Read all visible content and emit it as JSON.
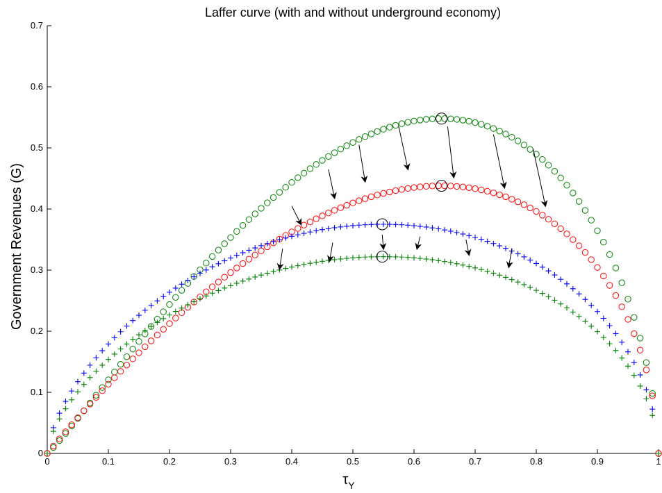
{
  "chart_data": {
    "type": "scatter",
    "title": "Laffer curve (with and without underground economy)",
    "xlabel": "τ",
    "xlabel_subscript": "Y",
    "ylabel": "Government Revenues (G)",
    "xlim": [
      0,
      1
    ],
    "ylim": [
      0,
      0.7
    ],
    "xticks": [
      "0",
      "0.1",
      "0.2",
      "0.3",
      "0.4",
      "0.5",
      "0.6",
      "0.7",
      "0.8",
      "0.9",
      "1"
    ],
    "yticks": [
      "0",
      "0.1",
      "0.2",
      "0.3",
      "0.4",
      "0.5",
      "0.6",
      "0.7"
    ],
    "grid": false,
    "series": [
      {
        "marker": "circle",
        "color": "#008000",
        "peak": [
          0.645,
          0.548
        ],
        "shape": 0.55
      },
      {
        "marker": "circle",
        "color": "#ff0000",
        "peak": [
          0.645,
          0.438
        ],
        "shape": 0.38
      },
      {
        "marker": "plus",
        "color": "#0000ff",
        "peak": [
          0.55,
          0.375
        ],
        "shape": 0.1
      },
      {
        "marker": "plus",
        "color": "#008000",
        "peak": [
          0.55,
          0.322
        ],
        "shape": 0.1
      }
    ],
    "highlighted_points": [
      [
        0.645,
        0.548
      ],
      [
        0.645,
        0.438
      ],
      [
        0.548,
        0.375
      ],
      [
        0.548,
        0.322
      ]
    ],
    "arrows": [
      {
        "from": [
          0.4,
          0.405
        ],
        "to": [
          0.415,
          0.375
        ]
      },
      {
        "from": [
          0.46,
          0.465
        ],
        "to": [
          0.47,
          0.418
        ]
      },
      {
        "from": [
          0.51,
          0.505
        ],
        "to": [
          0.52,
          0.445
        ]
      },
      {
        "from": [
          0.575,
          0.535
        ],
        "to": [
          0.59,
          0.465
        ]
      },
      {
        "from": [
          0.655,
          0.535
        ],
        "to": [
          0.665,
          0.452
        ]
      },
      {
        "from": [
          0.73,
          0.522
        ],
        "to": [
          0.748,
          0.435
        ]
      },
      {
        "from": [
          0.795,
          0.498
        ],
        "to": [
          0.815,
          0.405
        ]
      },
      {
        "from": [
          0.385,
          0.335
        ],
        "to": [
          0.38,
          0.302
        ]
      },
      {
        "from": [
          0.467,
          0.345
        ],
        "to": [
          0.462,
          0.315
        ]
      },
      {
        "from": [
          0.548,
          0.358
        ],
        "to": [
          0.55,
          0.335
        ]
      },
      {
        "from": [
          0.61,
          0.355
        ],
        "to": [
          0.605,
          0.335
        ]
      },
      {
        "from": [
          0.685,
          0.35
        ],
        "to": [
          0.69,
          0.325
        ]
      },
      {
        "from": [
          0.76,
          0.335
        ],
        "to": [
          0.755,
          0.305
        ]
      }
    ]
  }
}
